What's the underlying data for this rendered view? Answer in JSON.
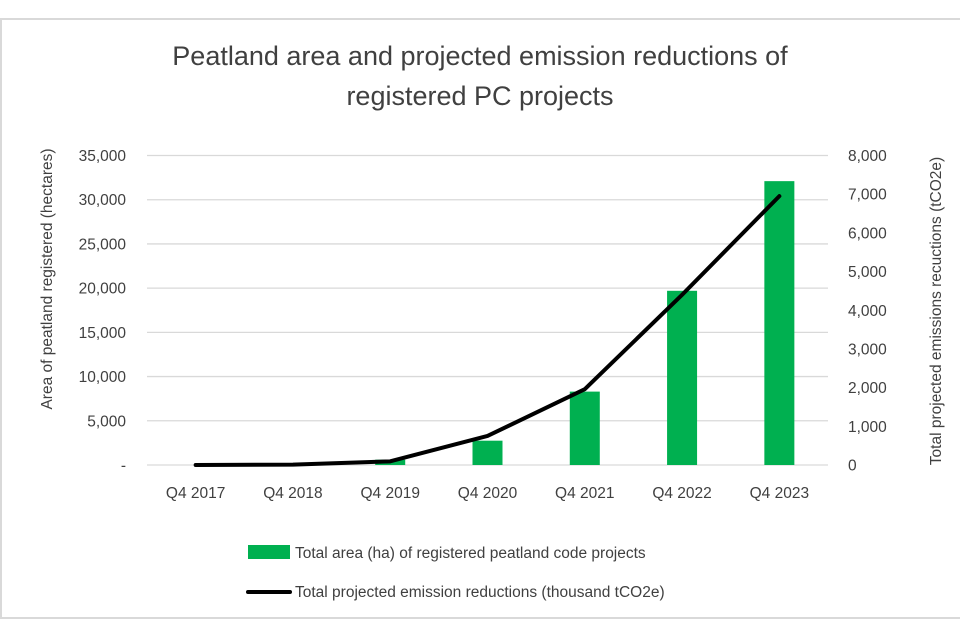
{
  "chart_data": {
    "type": "bar",
    "title": "Peatland area and projected emission reductions of registered PC projects",
    "title_lines": [
      "Peatland area and projected emission reductions of",
      "registered PC projects"
    ],
    "categories": [
      "Q4 2017",
      "Q4 2018",
      "Q4 2019",
      "Q4 2020",
      "Q4 2021",
      "Q4 2022",
      "Q4 2023"
    ],
    "series": [
      {
        "name": "Total area (ha) of registered peatland code projects",
        "type": "bar",
        "axis": "left",
        "color": "#00B050",
        "values": [
          0,
          0,
          600,
          2750,
          8300,
          19700,
          32100
        ]
      },
      {
        "name": "Total projected emission reductions (thousand tCO2e)",
        "type": "line",
        "axis": "right",
        "color": "#000000",
        "values": [
          0,
          10,
          95,
          750,
          1960,
          4400,
          6950
        ]
      }
    ],
    "ylabel": "Area of peatland registered (hectares)",
    "y2label": "Total projected emissions recuctions (tCO2e)",
    "xlabel": "",
    "ylim": [
      0,
      35000
    ],
    "y2lim": [
      0,
      8000
    ],
    "yticks": [
      0,
      5000,
      10000,
      15000,
      20000,
      25000,
      30000,
      35000
    ],
    "ytick_labels": [
      "-",
      "5,000",
      "10,000",
      "15,000",
      "20,000",
      "25,000",
      "30,000",
      "35,000"
    ],
    "y2ticks": [
      0,
      1000,
      2000,
      3000,
      4000,
      5000,
      6000,
      7000,
      8000
    ],
    "y2tick_labels": [
      "0",
      "1,000",
      "2,000",
      "3,000",
      "4,000",
      "5,000",
      "6,000",
      "7,000",
      "8,000"
    ],
    "grid": true,
    "legend_position": "bottom"
  }
}
